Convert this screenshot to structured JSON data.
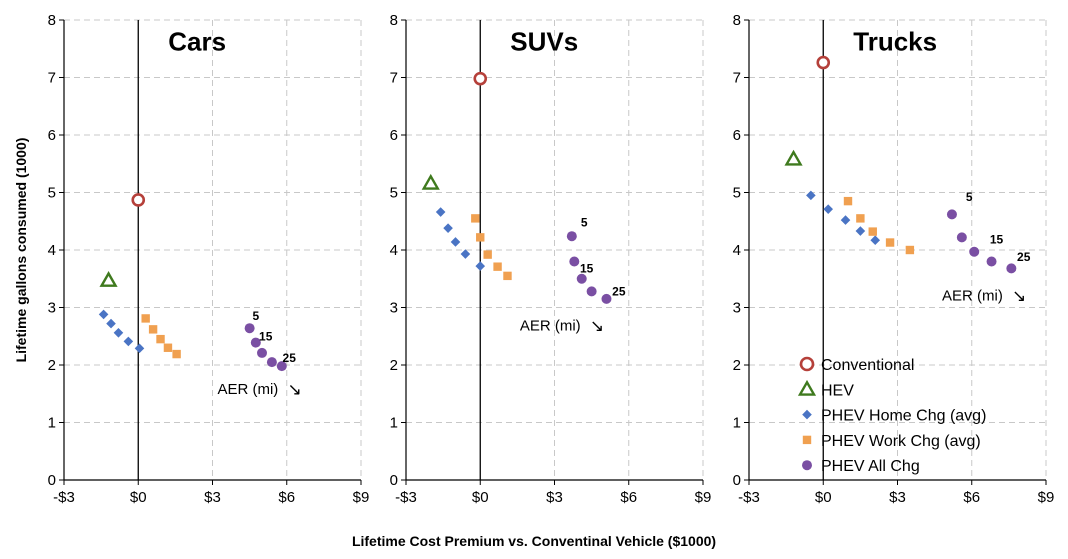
{
  "chart_data": {
    "type": "scatter",
    "ylabel": "Lifetime gallons consumed (1000)",
    "xlabel": "Lifetime Cost Premium vs. Conventinal Vehicle ($1000)",
    "xlim": [
      -3,
      9
    ],
    "ylim": [
      0,
      8
    ],
    "x_ticks": [
      -3,
      0,
      3,
      6,
      9
    ],
    "x_tick_labels": [
      "-$3",
      "$0",
      "$3",
      "$6",
      "$9"
    ],
    "y_ticks": [
      0,
      1,
      2,
      3,
      4,
      5,
      6,
      7,
      8
    ],
    "y_tick_labels": [
      "0",
      "1",
      "2",
      "3",
      "4",
      "5",
      "6",
      "7",
      "8"
    ],
    "grid": "dashed",
    "legend_location": "lower-right of third panel",
    "legend": [
      {
        "name": "Conventional",
        "marker": "circle-open",
        "color": "#b5403a"
      },
      {
        "name": "HEV",
        "marker": "triangle-open",
        "color": "#3f7a1e"
      },
      {
        "name": "PHEV Home Chg (avg)",
        "marker": "diamond",
        "color": "#4a74c4"
      },
      {
        "name": "PHEV Work Chg (avg)",
        "marker": "square",
        "color": "#f0a050"
      },
      {
        "name": "PHEV All Chg",
        "marker": "circle",
        "color": "#7a4fa3"
      }
    ],
    "panels": [
      {
        "title": "Cars",
        "series": [
          {
            "name": "Conventional",
            "points": [
              [
                0,
                4.87
              ]
            ]
          },
          {
            "name": "HEV",
            "points": [
              [
                -1.2,
                3.47
              ]
            ]
          },
          {
            "name": "PHEV Home Chg (avg)",
            "points": [
              [
                -1.4,
                2.88
              ],
              [
                -1.1,
                2.72
              ],
              [
                -0.8,
                2.56
              ],
              [
                -0.4,
                2.41
              ],
              [
                0.05,
                2.29
              ]
            ]
          },
          {
            "name": "PHEV Work Chg (avg)",
            "points": [
              [
                0.3,
                2.81
              ],
              [
                0.6,
                2.62
              ],
              [
                0.9,
                2.45
              ],
              [
                1.2,
                2.3
              ],
              [
                1.55,
                2.19
              ]
            ]
          },
          {
            "name": "PHEV All Chg",
            "points": [
              [
                4.5,
                2.64
              ],
              [
                4.75,
                2.39
              ],
              [
                5.0,
                2.21
              ],
              [
                5.4,
                2.05
              ],
              [
                5.8,
                1.98
              ]
            ]
          }
        ],
        "aer_labels": [
          {
            "text": "5",
            "x": 4.75,
            "y": 2.85
          },
          {
            "text": "15",
            "x": 5.15,
            "y": 2.5
          },
          {
            "text": "25",
            "x": 6.1,
            "y": 2.12
          }
        ],
        "aer_annotation": {
          "text": "AER (mi)",
          "arrow": "↘",
          "x": 3.2,
          "y": 1.5
        }
      },
      {
        "title": "SUVs",
        "series": [
          {
            "name": "Conventional",
            "points": [
              [
                0,
                6.98
              ]
            ]
          },
          {
            "name": "HEV",
            "points": [
              [
                -2.0,
                5.16
              ]
            ]
          },
          {
            "name": "PHEV Home Chg (avg)",
            "points": [
              [
                -1.6,
                4.66
              ],
              [
                -1.3,
                4.38
              ],
              [
                -1.0,
                4.14
              ],
              [
                -0.6,
                3.93
              ],
              [
                0.0,
                3.72
              ]
            ]
          },
          {
            "name": "PHEV Work Chg (avg)",
            "points": [
              [
                -0.2,
                4.55
              ],
              [
                0.0,
                4.22
              ],
              [
                0.3,
                3.92
              ],
              [
                0.7,
                3.71
              ],
              [
                1.1,
                3.55
              ]
            ]
          },
          {
            "name": "PHEV All Chg",
            "points": [
              [
                3.7,
                4.24
              ],
              [
                3.8,
                3.8
              ],
              [
                4.1,
                3.5
              ],
              [
                4.5,
                3.28
              ],
              [
                5.1,
                3.15
              ]
            ]
          }
        ],
        "aer_labels": [
          {
            "text": "5",
            "x": 4.2,
            "y": 4.48
          },
          {
            "text": "15",
            "x": 4.3,
            "y": 3.68
          },
          {
            "text": "25",
            "x": 5.6,
            "y": 3.28
          }
        ],
        "aer_annotation": {
          "text": "AER (mi)",
          "arrow": "↘",
          "x": 1.6,
          "y": 2.6
        }
      },
      {
        "title": "Trucks",
        "series": [
          {
            "name": "Conventional",
            "points": [
              [
                0,
                7.26
              ]
            ]
          },
          {
            "name": "HEV",
            "points": [
              [
                -1.2,
                5.58
              ]
            ]
          },
          {
            "name": "PHEV Home Chg (avg)",
            "points": [
              [
                -0.5,
                4.95
              ],
              [
                0.2,
                4.71
              ],
              [
                0.9,
                4.52
              ],
              [
                1.5,
                4.33
              ],
              [
                2.1,
                4.17
              ]
            ]
          },
          {
            "name": "PHEV Work Chg (avg)",
            "points": [
              [
                1.0,
                4.85
              ],
              [
                1.5,
                4.55
              ],
              [
                2.0,
                4.32
              ],
              [
                2.7,
                4.13
              ],
              [
                3.5,
                4.0
              ]
            ]
          },
          {
            "name": "PHEV All Chg",
            "points": [
              [
                5.2,
                4.62
              ],
              [
                5.6,
                4.22
              ],
              [
                6.1,
                3.97
              ],
              [
                6.8,
                3.8
              ],
              [
                7.6,
                3.68
              ]
            ]
          }
        ],
        "aer_labels": [
          {
            "text": "5",
            "x": 5.9,
            "y": 4.92
          },
          {
            "text": "15",
            "x": 7.0,
            "y": 4.18
          },
          {
            "text": "25",
            "x": 8.1,
            "y": 3.88
          }
        ],
        "aer_annotation": {
          "text": "AER (mi)",
          "arrow": "↘",
          "x": 4.8,
          "y": 3.12
        }
      }
    ]
  }
}
